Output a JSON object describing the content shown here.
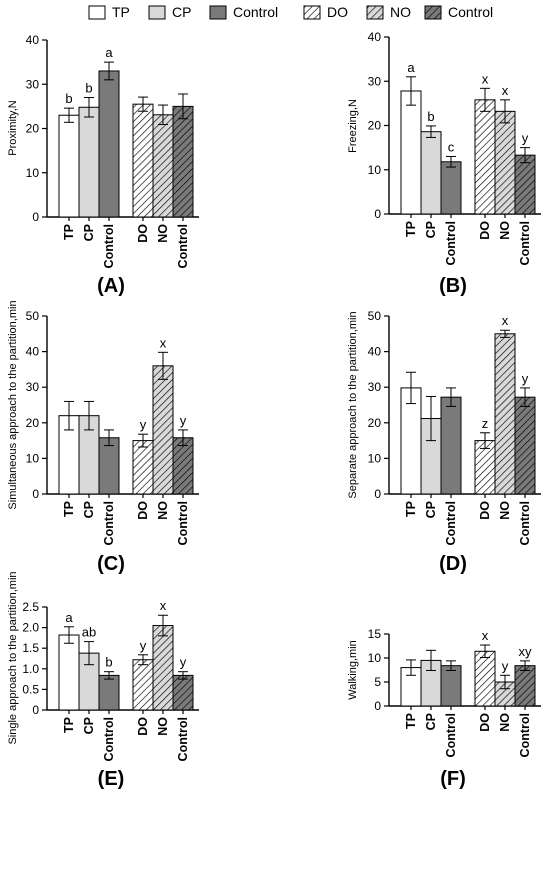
{
  "legend": {
    "items": [
      {
        "label": "TP",
        "fill": "white"
      },
      {
        "label": "CP",
        "fill": "light"
      },
      {
        "label": "Control",
        "fill": "dark"
      },
      {
        "label": "DO",
        "fill": "hatch-white"
      },
      {
        "label": "NO",
        "fill": "hatch-light"
      },
      {
        "label": "Control",
        "fill": "hatch-dark"
      }
    ]
  },
  "colors": {
    "white": "#ffffff",
    "light": "#d9d9d9",
    "dark": "#7a7a7a",
    "stroke": "#000000"
  },
  "chart_data": [
    {
      "type": "bar",
      "panel_label": "(A)",
      "ylabel": "Proximity,N",
      "ylim": [
        0,
        40
      ],
      "yticks": [
        0,
        10,
        20,
        30,
        40
      ],
      "ytick_labels": [
        "0",
        "10",
        "20",
        "30",
        "40"
      ],
      "categories": [
        "TP",
        "CP",
        "Control",
        "DO",
        "NO",
        "Control"
      ],
      "values": [
        23,
        24.8,
        33,
        25.5,
        23.1,
        25
      ],
      "errors": [
        1.6,
        2.2,
        2,
        1.6,
        2.2,
        2.8
      ],
      "annotations": [
        "b",
        "b",
        "a",
        "",
        "",
        ""
      ]
    },
    {
      "type": "bar",
      "panel_label": "(B)",
      "ylabel": "Freezing,N",
      "ylim": [
        0,
        40
      ],
      "yticks": [
        0,
        10,
        20,
        30,
        40
      ],
      "ytick_labels": [
        "0",
        "10",
        "20",
        "30",
        "40"
      ],
      "categories": [
        "TP",
        "CP",
        "Control",
        "DO",
        "NO",
        "Control"
      ],
      "values": [
        27.8,
        18.6,
        11.8,
        25.8,
        23.2,
        13.3
      ],
      "errors": [
        3.2,
        1.3,
        1.2,
        2.6,
        2.6,
        1.7
      ],
      "annotations": [
        "a",
        "b",
        "c",
        "x",
        "x",
        "y"
      ]
    },
    {
      "type": "bar",
      "panel_label": "(C)",
      "ylabel": "Simultaneous approach to the partition,min",
      "ylim": [
        0,
        50
      ],
      "yticks": [
        0,
        10,
        20,
        30,
        40,
        50
      ],
      "ytick_labels": [
        "0",
        "10",
        "20",
        "30",
        "40",
        "50"
      ],
      "categories": [
        "TP",
        "CP",
        "Control",
        "DO",
        "NO",
        "Control"
      ],
      "values": [
        22,
        22,
        15.8,
        15,
        36,
        15.8
      ],
      "errors": [
        4,
        4,
        2.2,
        1.8,
        3.8,
        2.2
      ],
      "annotations": [
        "",
        "",
        "",
        "y",
        "x",
        "y"
      ]
    },
    {
      "type": "bar",
      "panel_label": "(D)",
      "ylabel": "Separate approach to the partition,min",
      "ylim": [
        0,
        50
      ],
      "yticks": [
        0,
        10,
        20,
        30,
        40,
        50
      ],
      "ytick_labels": [
        "0",
        "10",
        "20",
        "30",
        "40",
        "50"
      ],
      "categories": [
        "TP",
        "CP",
        "Control",
        "DO",
        "NO",
        "Control"
      ],
      "values": [
        29.8,
        21.2,
        27.2,
        15,
        45,
        27.2
      ],
      "errors": [
        4.4,
        6.2,
        2.6,
        2.2,
        1,
        2.6
      ],
      "annotations": [
        "",
        "",
        "",
        "z",
        "x",
        "y"
      ]
    },
    {
      "type": "bar",
      "panel_label": "(E)",
      "ylabel": "Single approach to the partition,min",
      "ylim": [
        0,
        2.5
      ],
      "yticks": [
        0,
        0.5,
        1,
        1.5,
        2,
        2.5
      ],
      "ytick_labels": [
        "0",
        "0.5",
        "1.0",
        "1.5",
        "2.0",
        "2.5"
      ],
      "categories": [
        "TP",
        "CP",
        "Control",
        "DO",
        "NO",
        "Control"
      ],
      "values": [
        1.82,
        1.38,
        0.84,
        1.22,
        2.05,
        0.84
      ],
      "errors": [
        0.2,
        0.28,
        0.09,
        0.12,
        0.25,
        0.09
      ],
      "annotations": [
        "a",
        "ab",
        "b",
        "y",
        "x",
        "y"
      ]
    },
    {
      "type": "bar",
      "panel_label": "(F)",
      "ylabel": "Walking,min",
      "ylim": [
        0,
        15
      ],
      "yticks": [
        0,
        5,
        10,
        15
      ],
      "ytick_labels": [
        "0",
        "5",
        "10",
        "15"
      ],
      "categories": [
        "TP",
        "CP",
        "Control",
        "DO",
        "NO",
        "Control"
      ],
      "values": [
        8,
        9.5,
        8.4,
        11.4,
        5,
        8.4
      ],
      "errors": [
        1.6,
        2.1,
        1,
        1.3,
        1.4,
        1
      ],
      "annotations": [
        "",
        "",
        "",
        "x",
        "y",
        "xy"
      ]
    }
  ]
}
